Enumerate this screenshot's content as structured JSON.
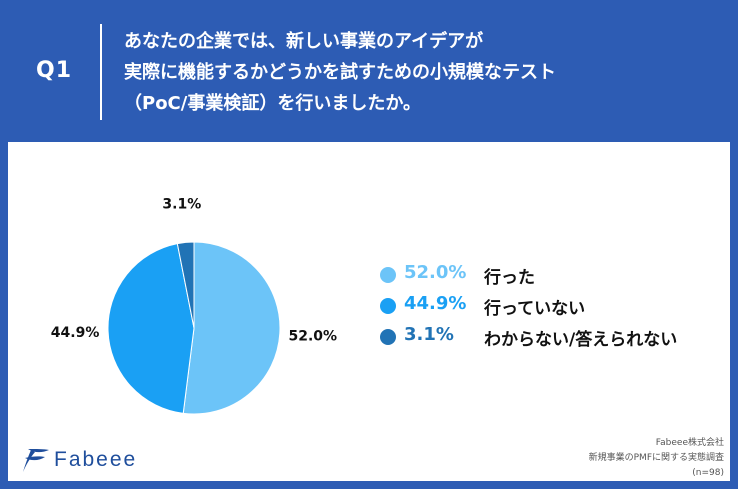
{
  "question": {
    "label": "Q1",
    "lines": [
      "あなたの企業では、新しい事業のアイデアが",
      "実際に機能するかどうかを試すための小規模なテスト",
      "（PoC/事業検証）を行いましたか。"
    ]
  },
  "chart_data": {
    "type": "pie",
    "title": "",
    "slices": [
      {
        "label": "行った",
        "value": 52.0,
        "display": "52.0%",
        "color": "#6cc4f8"
      },
      {
        "label": "行っていない",
        "value": 44.9,
        "display": "44.9%",
        "color": "#1aa0f4"
      },
      {
        "label": "わからない/答えられない",
        "value": 3.1,
        "display": "3.1%",
        "color": "#2173b5"
      }
    ]
  },
  "brand": {
    "name": "Fabeee"
  },
  "source": {
    "company": "Fabeee株式会社",
    "survey": "新規事業のPMFに関する実態調査",
    "sample": "(n=98)"
  },
  "colors": {
    "header_bg": "#2d5cb4",
    "card_bg": "#ffffff",
    "logo": "#1f4e9c"
  }
}
